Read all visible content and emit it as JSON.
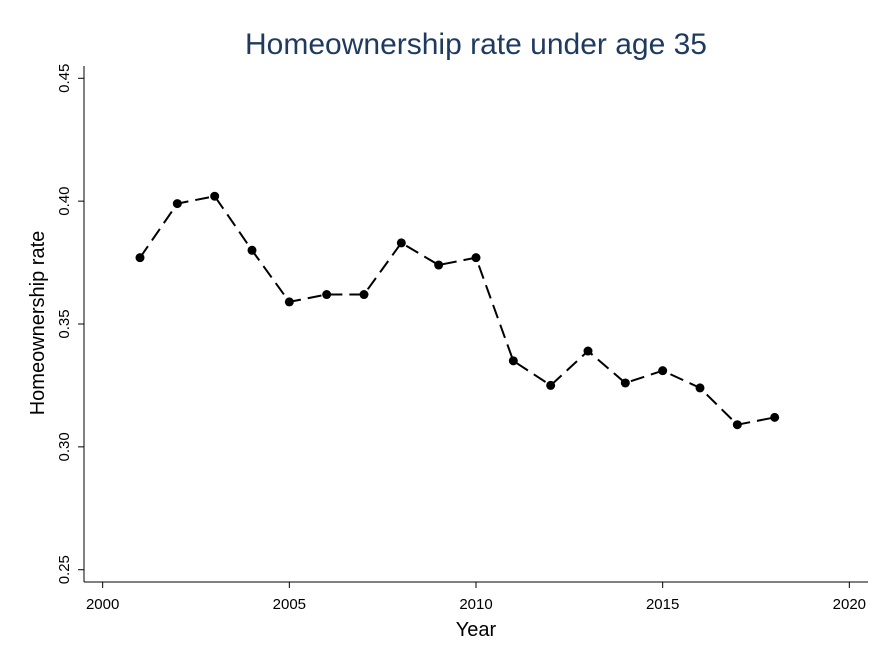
{
  "chart_data": {
    "type": "line",
    "title": "Homeownership rate under age 35",
    "xlabel": "Year",
    "ylabel": "Homeownership rate",
    "xlim": [
      1999.5,
      2020.5
    ],
    "ylim": [
      0.245,
      0.455
    ],
    "xticks": [
      2000,
      2005,
      2010,
      2015,
      2020
    ],
    "xtick_labels": [
      "2000",
      "2005",
      "2010",
      "2015",
      "2020"
    ],
    "yticks": [
      0.25,
      0.3,
      0.35,
      0.4,
      0.45
    ],
    "ytick_labels": [
      "0.25",
      "0.30",
      "0.35",
      "0.40",
      "0.45"
    ],
    "grid": false,
    "series": [
      {
        "x": [
          2001,
          2002,
          2003,
          2004,
          2005,
          2006,
          2007,
          2008,
          2009,
          2010,
          2011,
          2012,
          2013,
          2014,
          2015,
          2016,
          2017,
          2018
        ],
        "y": [
          0.377,
          0.399,
          0.402,
          0.38,
          0.359,
          0.362,
          0.362,
          0.383,
          0.374,
          0.377,
          0.335,
          0.325,
          0.339,
          0.326,
          0.331,
          0.324,
          0.309,
          0.312
        ],
        "color": "#000000",
        "line_style": "dashed",
        "marker": "circle"
      }
    ]
  }
}
